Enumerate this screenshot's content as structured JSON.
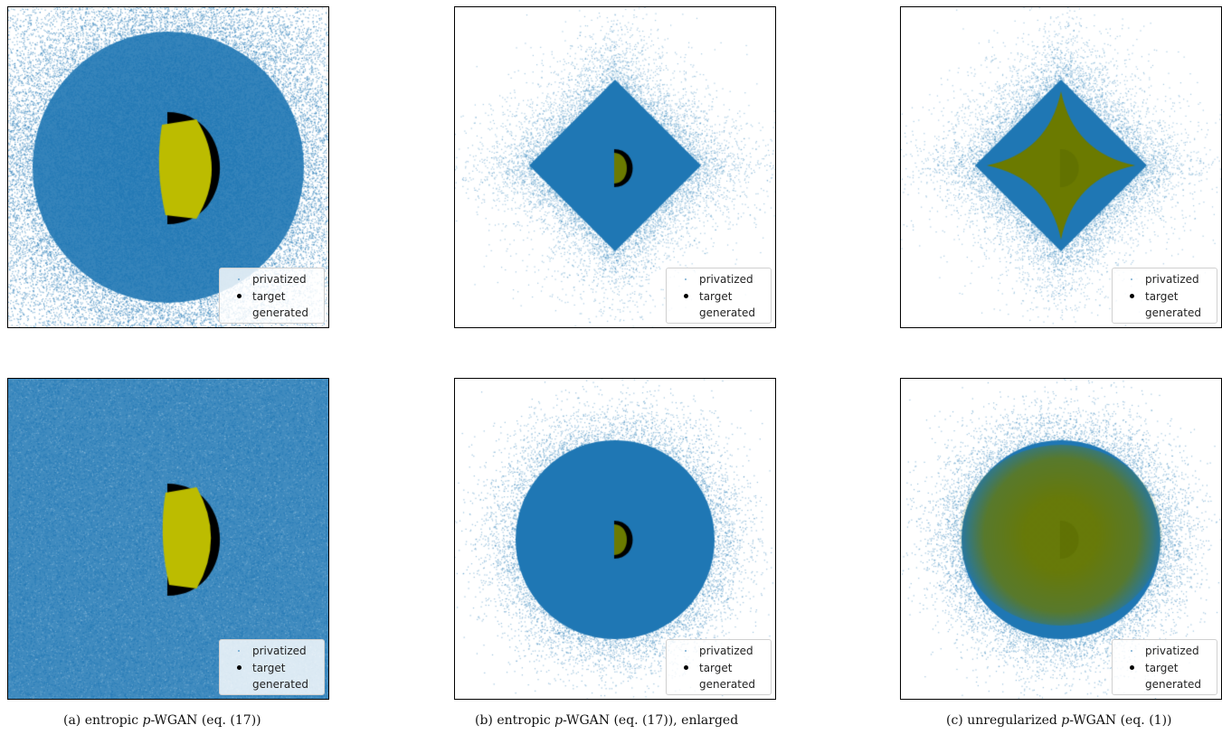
{
  "legend": {
    "privatized": "privatized",
    "target": "target",
    "generated": "generated"
  },
  "captions": {
    "a": {
      "prefix": "(a) entropic ",
      "var": "p",
      "suffix": "-WGAN (eq. (17))"
    },
    "b": {
      "prefix": "(b) entropic ",
      "var": "p",
      "suffix": "-WGAN (eq. (17)), enlarged"
    },
    "c": {
      "prefix": "(c) unregularized ",
      "var": "p",
      "suffix": "-WGAN (eq. (1))"
    }
  },
  "colors": {
    "privatized": "#1f77b4",
    "target": "#000000",
    "generated_bright": "#bcbc00",
    "generated_dark": "#6b7a00"
  },
  "chart_data": [
    {
      "type": "scatter",
      "panel": "a-top",
      "privatized_shape": "circular-spread (fills panel)",
      "generated_shape": "half-disc",
      "generated_color": "#bcbc00"
    },
    {
      "type": "scatter",
      "panel": "b-top",
      "privatized_shape": "diamond",
      "generated_shape": "small half-disc",
      "generated_color": "#6b7a00"
    },
    {
      "type": "scatter",
      "panel": "c-top",
      "privatized_shape": "diamond",
      "generated_shape": "astroid (star)",
      "generated_color": "#6b7a00"
    },
    {
      "type": "scatter",
      "panel": "a-bottom",
      "privatized_shape": "uniform (fills panel)",
      "generated_shape": "half-disc",
      "generated_color": "#bcbc00"
    },
    {
      "type": "scatter",
      "panel": "b-bottom",
      "privatized_shape": "disc",
      "generated_shape": "small half-disc",
      "generated_color": "#6b7a00"
    },
    {
      "type": "scatter",
      "panel": "c-bottom",
      "privatized_shape": "disc",
      "generated_shape": "large rounded blob",
      "generated_color": "#6b7a00"
    }
  ]
}
